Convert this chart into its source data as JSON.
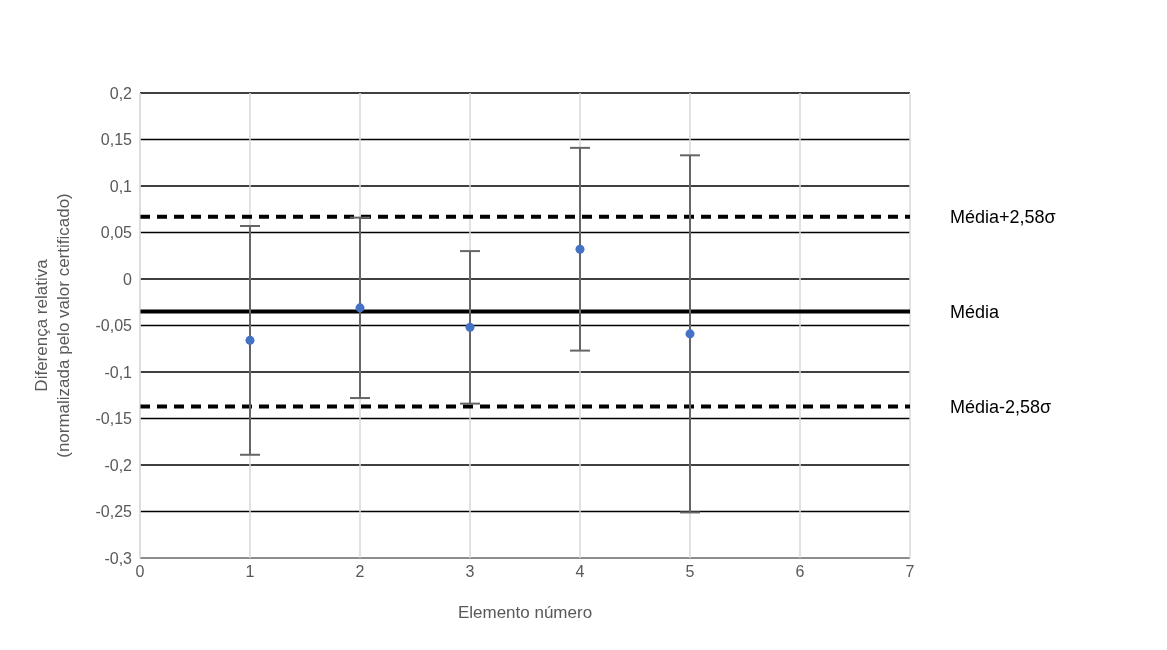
{
  "chart_data": {
    "type": "scatter",
    "xlabel": "Elemento número",
    "ylabel": "Diferença relativa\n(normalizada pelo valor certificado)",
    "x": [
      1,
      2,
      3,
      4,
      5
    ],
    "series": [
      {
        "color": "#4472c4",
        "values": [
          -0.066,
          -0.031,
          -0.052,
          0.032,
          -0.059
        ],
        "errors": [
          0.123,
          0.097,
          0.082,
          0.109,
          0.192
        ]
      }
    ],
    "xlim": [
      0,
      7
    ],
    "xticks": [
      0,
      1,
      2,
      3,
      4,
      5,
      6,
      7
    ],
    "ylim": [
      -0.3,
      0.2
    ],
    "yticks": [
      {
        "value": -0.3,
        "label": "-0,3"
      },
      {
        "value": -0.25,
        "label": "-0,25"
      },
      {
        "value": -0.2,
        "label": "-0,2"
      },
      {
        "value": -0.15,
        "label": "-0,15"
      },
      {
        "value": -0.1,
        "label": "-0,1"
      },
      {
        "value": -0.05,
        "label": "-0,05"
      },
      {
        "value": 0,
        "label": "0"
      },
      {
        "value": 0.05,
        "label": "0,05"
      },
      {
        "value": 0.1,
        "label": "0,1"
      },
      {
        "value": 0.15,
        "label": "0,15"
      },
      {
        "value": 0.2,
        "label": "0,2"
      }
    ],
    "ref_lines": [
      {
        "axis": "y",
        "value": 0.067,
        "label": "Média+2,58σ",
        "color": "#000000",
        "line_style": "dashed"
      },
      {
        "axis": "y",
        "value": -0.035,
        "label": "Média",
        "color": "#000000",
        "line_style": "solid"
      },
      {
        "axis": "y",
        "value": -0.137,
        "label": "Média-2,58σ",
        "color": "#000000",
        "line_style": "dashed"
      }
    ],
    "grid": true,
    "legend": false,
    "marker": "circle"
  }
}
